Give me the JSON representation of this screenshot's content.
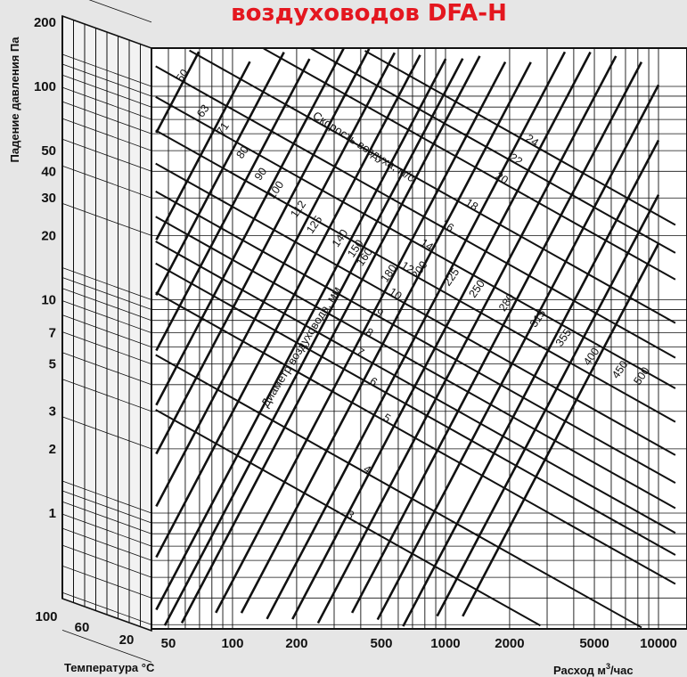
{
  "chart_data": {
    "type": "nomogram",
    "title": "воздуховодов DFA-H",
    "ylabel": "Падение давления Па",
    "xlabel": "Расход м³/час",
    "xlabel_parts": {
      "main": "Расход м",
      "sup": "3",
      "tail": "/час"
    },
    "temperature_label": "Температура °C",
    "x_scale": "log",
    "y_scale": "log",
    "xlim": [
      40,
      10000
    ],
    "ylim": [
      0.2,
      200
    ],
    "x_ticks": [
      {
        "label": "50",
        "value": 50
      },
      {
        "label": "100",
        "value": 100
      },
      {
        "label": "200",
        "value": 200
      },
      {
        "label": "500",
        "value": 500
      },
      {
        "label": "1000",
        "value": 1000
      },
      {
        "label": "2000",
        "value": 2000
      },
      {
        "label": "5000",
        "value": 5000
      },
      {
        "label": "10000",
        "value": 10000
      }
    ],
    "y_ticks": [
      {
        "label": "200",
        "value": 200
      },
      {
        "label": "100",
        "value": 100
      },
      {
        "label": "50",
        "value": 50
      },
      {
        "label": "40",
        "value": 40
      },
      {
        "label": "30",
        "value": 30
      },
      {
        "label": "20",
        "value": 20
      },
      {
        "label": "10",
        "value": 10
      },
      {
        "label": "7",
        "value": 7
      },
      {
        "label": "5",
        "value": 5
      },
      {
        "label": "3",
        "value": 3
      },
      {
        "label": "2",
        "value": 2
      },
      {
        "label": "1",
        "value": 1
      }
    ],
    "temperature_ticks": [
      {
        "label": "100",
        "value": 100
      },
      {
        "label": "60",
        "value": 60
      },
      {
        "label": "20",
        "value": 20
      }
    ],
    "diameter_title": "Диаметр воздуховода, мм",
    "diameter_unit": "mm",
    "diameters": [
      {
        "label": "50",
        "value": 50,
        "label_at": [
          60,
          110
        ]
      },
      {
        "label": "63",
        "value": 63,
        "label_at": [
          75,
          75
        ]
      },
      {
        "label": "71",
        "value": 71,
        "label_at": [
          93,
          62
        ]
      },
      {
        "label": "80",
        "value": 80,
        "label_at": [
          115,
          48
        ]
      },
      {
        "label": "90",
        "value": 90,
        "label_at": [
          140,
          38
        ]
      },
      {
        "label": "100",
        "value": 100,
        "label_at": [
          165,
          32
        ]
      },
      {
        "label": "112",
        "value": 112,
        "label_at": [
          210,
          26
        ]
      },
      {
        "label": "125",
        "value": 125,
        "label_at": [
          250,
          22
        ]
      },
      {
        "label": "140",
        "value": 140,
        "label_at": [
          330,
          19
        ]
      },
      {
        "label": "150",
        "value": 150,
        "label_at": [
          390,
          17
        ]
      },
      {
        "label": "160",
        "value": 160,
        "label_at": [
          430,
          15.5
        ]
      },
      {
        "label": "180",
        "value": 180,
        "label_at": [
          560,
          13
        ]
      },
      {
        "label": "200",
        "value": 200,
        "label_at": [
          780,
          13.5
        ]
      },
      {
        "label": "225",
        "value": 225,
        "label_at": [
          1100,
          12.5
        ]
      },
      {
        "label": "250",
        "value": 250,
        "label_at": [
          1450,
          11
        ]
      },
      {
        "label": "280",
        "value": 280,
        "label_at": [
          2000,
          9.5
        ]
      },
      {
        "label": "315",
        "value": 315,
        "label_at": [
          2800,
          8
        ]
      },
      {
        "label": "355",
        "value": 355,
        "label_at": [
          3700,
          6.5
        ]
      },
      {
        "label": "400",
        "value": 400,
        "label_at": [
          5000,
          5.3
        ]
      },
      {
        "label": "450",
        "value": 450,
        "label_at": [
          6800,
          4.6
        ]
      },
      {
        "label": "500",
        "value": 500,
        "label_at": [
          8600,
          4.3
        ]
      }
    ],
    "velocity_title": "Скорость воздуха, м/с",
    "velocity_unit": "m/s",
    "velocities": [
      {
        "label": "3",
        "value": 3,
        "label_at": [
          350,
          0.95
        ]
      },
      {
        "label": "4",
        "value": 4,
        "label_at": [
          420,
          1.55
        ]
      },
      {
        "label": "5",
        "value": 5,
        "label_at": [
          520,
          2.7
        ]
      },
      {
        "label": "6",
        "value": 6,
        "label_at": [
          450,
          4.0
        ]
      },
      {
        "label": "7",
        "value": 7,
        "label_at": [
          390,
          5.5
        ]
      },
      {
        "label": "8",
        "value": 8,
        "label_at": [
          430,
          6.8
        ]
      },
      {
        "label": "9",
        "value": 9,
        "label_at": [
          480,
          8.4
        ]
      },
      {
        "label": "10",
        "value": 10,
        "label_at": [
          570,
          10.3
        ]
      },
      {
        "label": "12",
        "value": 12,
        "label_at": [
          650,
          13.7
        ]
      },
      {
        "label": "14",
        "value": 14,
        "label_at": [
          800,
          17.5
        ]
      },
      {
        "label": "16",
        "value": 16,
        "label_at": [
          1000,
          21.5
        ]
      },
      {
        "label": "18",
        "value": 18,
        "label_at": [
          1300,
          27
        ]
      },
      {
        "label": "20",
        "value": 20,
        "label_at": [
          1800,
          36
        ]
      },
      {
        "label": "22",
        "value": 22,
        "label_at": [
          2100,
          44
        ]
      },
      {
        "label": "24",
        "value": 24,
        "label_at": [
          2500,
          54
        ]
      }
    ]
  }
}
